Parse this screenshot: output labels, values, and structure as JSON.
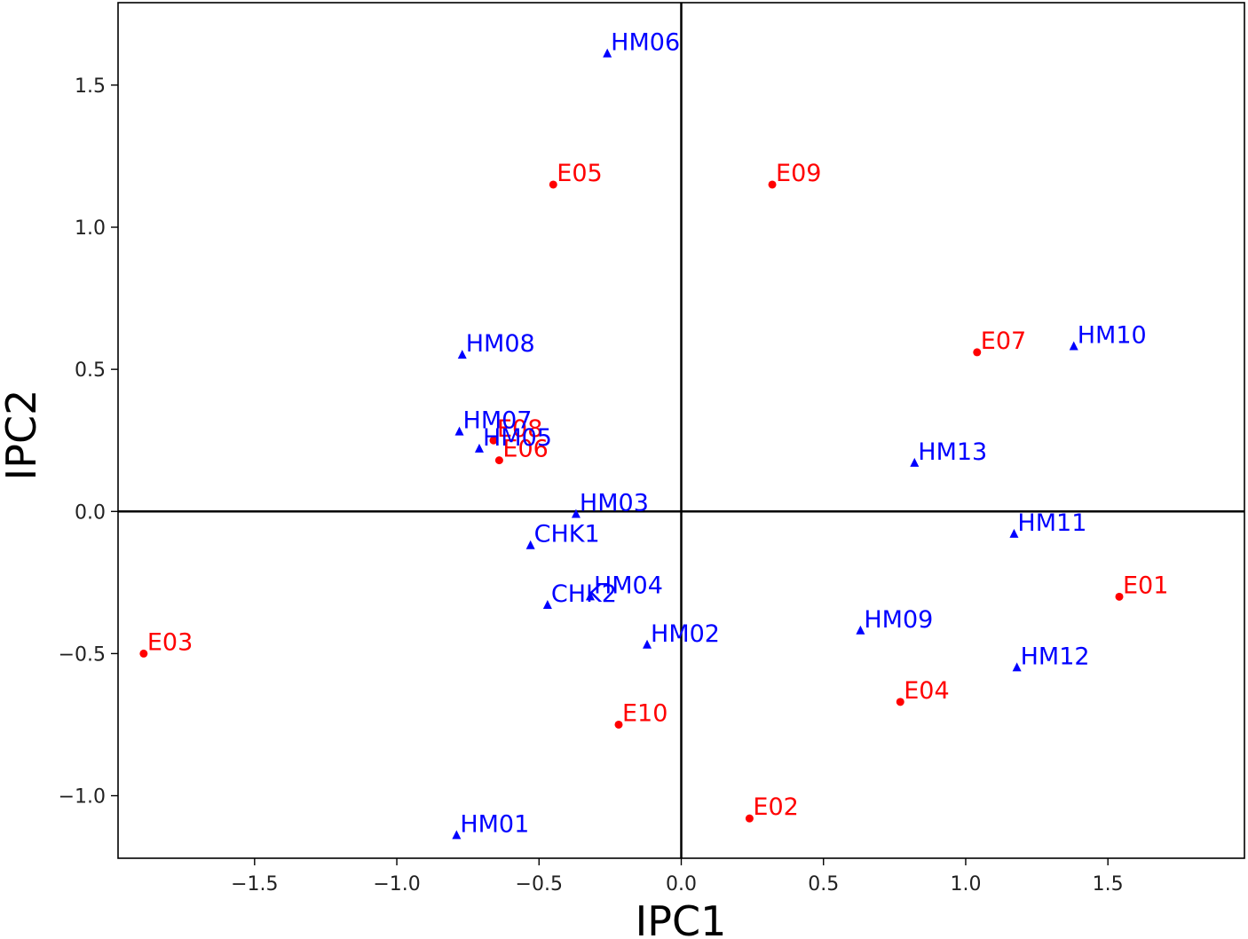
{
  "chart_data": {
    "type": "scatter",
    "xlabel": "IPC1",
    "ylabel": "IPC2",
    "xlim": [
      -1.98,
      1.98
    ],
    "ylim": [
      -1.22,
      1.79
    ],
    "xticks": [
      -1.5,
      -1.0,
      -0.5,
      0.0,
      0.5,
      1.0,
      1.5
    ],
    "yticks": [
      -1.0,
      -0.5,
      0.0,
      0.5,
      1.0,
      1.5
    ],
    "xtick_labels": [
      "−1.5",
      "−1.0",
      "−0.5",
      "0.0",
      "0.5",
      "1.0",
      "1.5"
    ],
    "ytick_labels": [
      "−1.0",
      "−0.5",
      "0.0",
      "0.5",
      "1.0",
      "1.5"
    ],
    "reference_lines": {
      "x": 0,
      "y": 0
    },
    "grid": false,
    "series": [
      {
        "marker": "circle",
        "color": "#ff0000",
        "points": [
          {
            "label": "E01",
            "x": 1.54,
            "y": -0.3
          },
          {
            "label": "E02",
            "x": 0.24,
            "y": -1.08
          },
          {
            "label": "E03",
            "x": -1.89,
            "y": -0.5
          },
          {
            "label": "E04",
            "x": 0.77,
            "y": -0.67
          },
          {
            "label": "E05",
            "x": -0.45,
            "y": 1.15
          },
          {
            "label": "E06",
            "x": -0.64,
            "y": 0.18
          },
          {
            "label": "E07",
            "x": 1.04,
            "y": 0.56
          },
          {
            "label": "E08",
            "x": -0.66,
            "y": 0.25
          },
          {
            "label": "E09",
            "x": 0.32,
            "y": 1.15
          },
          {
            "label": "E10",
            "x": -0.22,
            "y": -0.75
          }
        ]
      },
      {
        "marker": "triangle",
        "color": "#0000ff",
        "points": [
          {
            "label": "HM01",
            "x": -0.79,
            "y": -1.14
          },
          {
            "label": "HM02",
            "x": -0.12,
            "y": -0.47
          },
          {
            "label": "HM03",
            "x": -0.37,
            "y": -0.01
          },
          {
            "label": "HM04",
            "x": -0.32,
            "y": -0.3
          },
          {
            "label": "HM05",
            "x": -0.71,
            "y": 0.22
          },
          {
            "label": "HM06",
            "x": -0.26,
            "y": 1.61
          },
          {
            "label": "HM07",
            "x": -0.78,
            "y": 0.28
          },
          {
            "label": "HM08",
            "x": -0.77,
            "y": 0.55
          },
          {
            "label": "HM09",
            "x": 0.63,
            "y": -0.42
          },
          {
            "label": "HM10",
            "x": 1.38,
            "y": 0.58
          },
          {
            "label": "HM11",
            "x": 1.17,
            "y": -0.08
          },
          {
            "label": "HM12",
            "x": 1.18,
            "y": -0.55
          },
          {
            "label": "HM13",
            "x": 0.82,
            "y": 0.17
          },
          {
            "label": "CHK1",
            "x": -0.53,
            "y": -0.12
          },
          {
            "label": "CHK2",
            "x": -0.47,
            "y": -0.33
          }
        ]
      }
    ]
  }
}
